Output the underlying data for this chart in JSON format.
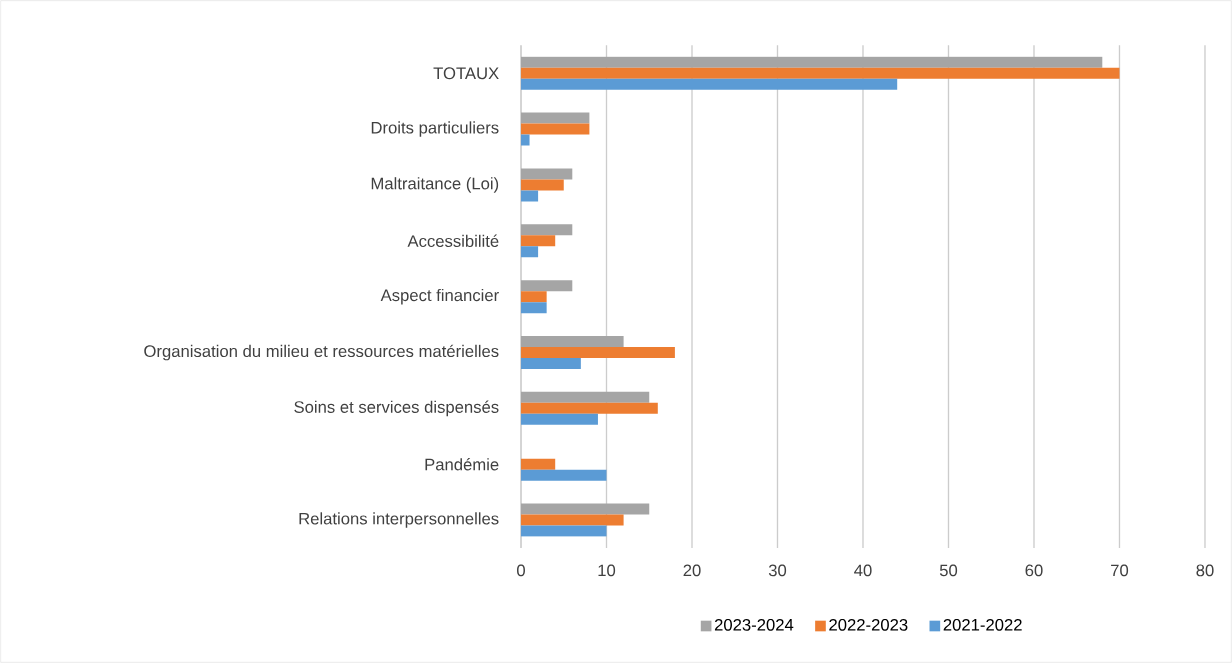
{
  "chart_data": {
    "type": "bar",
    "orientation": "horizontal",
    "categories": [
      "TOTAUX",
      "Droits particuliers",
      "Maltraitance (Loi)",
      "Accessibilité",
      "Aspect financier",
      "Organisation du milieu et ressources matérielles",
      "Soins et services dispensés",
      "Pandémie",
      "Relations interpersonnelles"
    ],
    "series": [
      {
        "name": "2023-2024",
        "color": "#a5a5a5",
        "values": [
          68,
          8,
          6,
          6,
          6,
          12,
          15,
          0,
          15
        ]
      },
      {
        "name": "2022-2023",
        "color": "#ed7d31",
        "values": [
          70,
          8,
          5,
          4,
          3,
          18,
          16,
          4,
          12
        ]
      },
      {
        "name": "2021-2022",
        "color": "#5b9bd5",
        "values": [
          44,
          1,
          2,
          2,
          3,
          7,
          9,
          10,
          10
        ]
      }
    ],
    "xlim": [
      0,
      80
    ],
    "xticks": [
      0,
      10,
      20,
      30,
      40,
      50,
      60,
      70,
      80
    ],
    "grid": "x",
    "legend": "bottom"
  }
}
